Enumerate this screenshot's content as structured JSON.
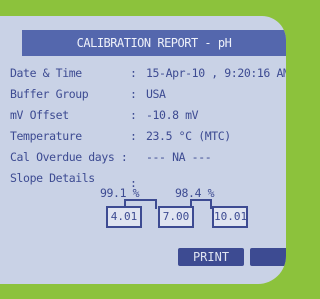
{
  "header": {
    "title": "CALIBRATION REPORT - pH"
  },
  "rows": [
    {
      "label": "Date & Time",
      "separator": ":",
      "value": "15-Apr-10 , 9:20:16 AM"
    },
    {
      "label": "Buffer Group",
      "separator": ":",
      "value": "USA"
    },
    {
      "label": "mV Offset",
      "separator": ":",
      "value": "-10.8 mV"
    },
    {
      "label": "Temperature",
      "separator": ":",
      "value": "23.5 °C (MTC)"
    },
    {
      "label": "Cal Overdue days :",
      "value": "--- NA ---"
    }
  ],
  "slope": {
    "label": "Slope Details",
    "separator": ":",
    "values": [
      "99.1 %",
      "98.4 %"
    ]
  },
  "buffers": [
    "4.01",
    "7.00",
    "10.01"
  ],
  "button": "PRINT"
}
